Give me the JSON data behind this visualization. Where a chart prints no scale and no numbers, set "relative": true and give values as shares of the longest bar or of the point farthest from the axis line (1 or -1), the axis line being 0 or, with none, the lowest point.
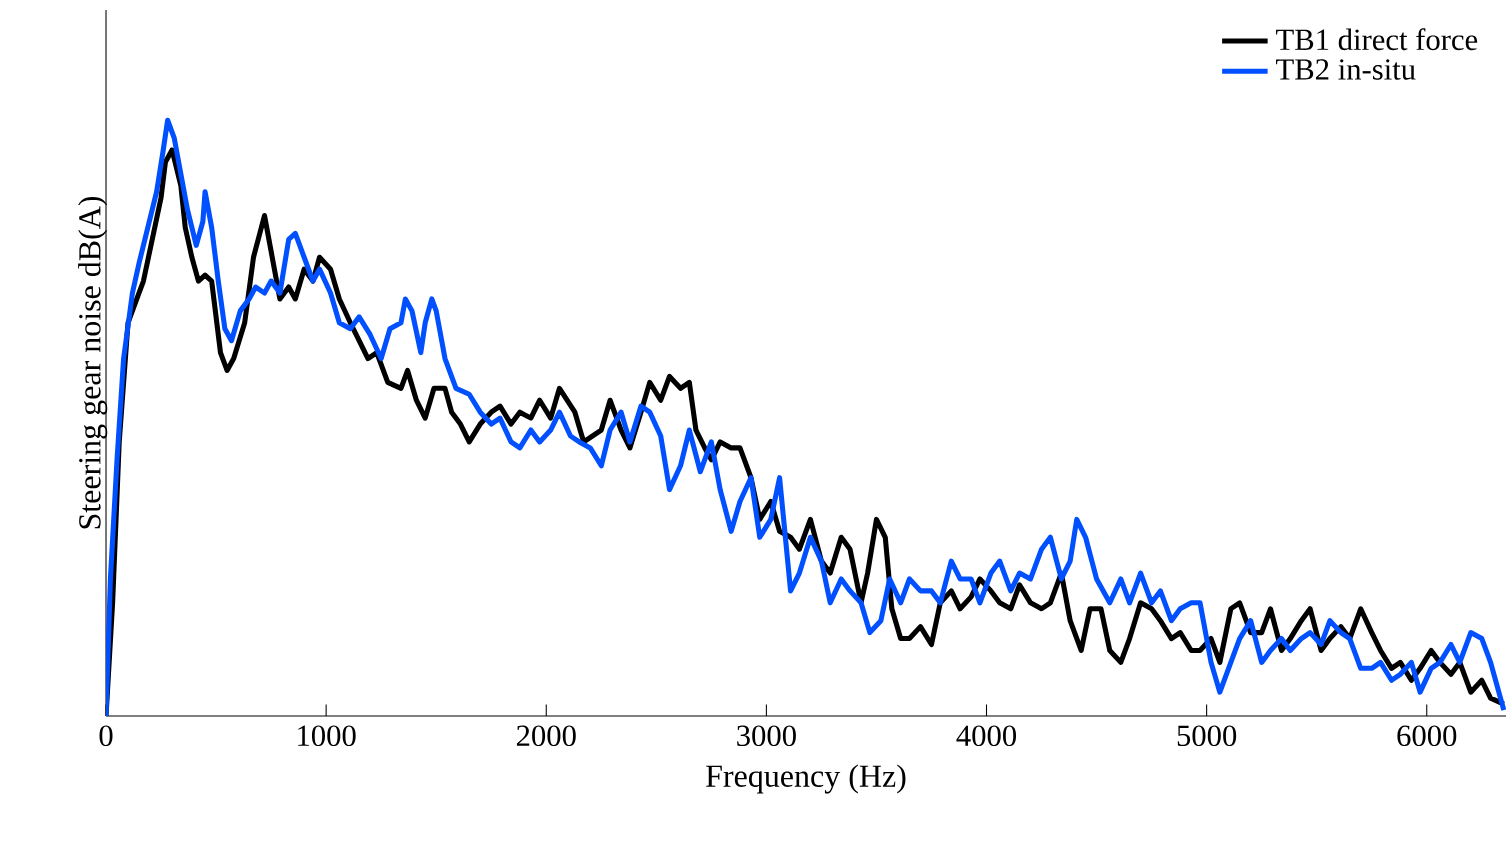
{
  "chart_data": {
    "type": "line",
    "relative": true,
    "xlabel": "Frequency (Hz)",
    "ylabel": "Steering gear noise dB(A)",
    "xlim": [
      0,
      6360
    ],
    "xticks": [
      0,
      1000,
      2000,
      3000,
      4000,
      5000,
      6000
    ],
    "legend": "top right",
    "grid": false,
    "marker": "none",
    "line_style": "solid",
    "series": [
      {
        "name": "TB1 direct force",
        "color": "#000000",
        "x": [
          0,
          30,
          60,
          100,
          140,
          170,
          210,
          250,
          270,
          300,
          340,
          360,
          390,
          420,
          450,
          480,
          520,
          550,
          580,
          630,
          670,
          720,
          750,
          790,
          830,
          860,
          900,
          940,
          970,
          1020,
          1060,
          1110,
          1150,
          1190,
          1230,
          1280,
          1340,
          1370,
          1410,
          1450,
          1490,
          1540,
          1570,
          1610,
          1650,
          1700,
          1750,
          1790,
          1840,
          1880,
          1930,
          1970,
          2020,
          2060,
          2130,
          2170,
          2210,
          2250,
          2290,
          2340,
          2380,
          2430,
          2470,
          2520,
          2560,
          2610,
          2650,
          2680,
          2720,
          2750,
          2790,
          2840,
          2880,
          2930,
          2970,
          3020,
          3060,
          3110,
          3150,
          3200,
          3250,
          3290,
          3340,
          3380,
          3430,
          3460,
          3500,
          3540,
          3570,
          3610,
          3650,
          3700,
          3750,
          3790,
          3840,
          3880,
          3930,
          3970,
          4020,
          4060,
          4110,
          4150,
          4200,
          4250,
          4290,
          4340,
          4380,
          4430,
          4470,
          4520,
          4560,
          4610,
          4650,
          4700,
          4750,
          4790,
          4840,
          4880,
          4930,
          4970,
          5020,
          5060,
          5110,
          5150,
          5200,
          5250,
          5290,
          5340,
          5380,
          5430,
          5470,
          5520,
          5560,
          5610,
          5650,
          5700,
          5750,
          5790,
          5840,
          5880,
          5930,
          5970,
          6020,
          6060,
          6110,
          6150,
          6200,
          6250,
          6290,
          6350
        ],
        "values": [
          0,
          0.19,
          0.46,
          0.66,
          0.7,
          0.73,
          0.8,
          0.87,
          0.93,
          0.95,
          0.89,
          0.82,
          0.77,
          0.73,
          0.74,
          0.73,
          0.61,
          0.58,
          0.6,
          0.66,
          0.77,
          0.84,
          0.78,
          0.7,
          0.72,
          0.7,
          0.75,
          0.73,
          0.77,
          0.75,
          0.7,
          0.66,
          0.63,
          0.6,
          0.61,
          0.56,
          0.55,
          0.58,
          0.53,
          0.5,
          0.55,
          0.55,
          0.51,
          0.49,
          0.46,
          0.49,
          0.51,
          0.52,
          0.49,
          0.51,
          0.5,
          0.53,
          0.5,
          0.55,
          0.51,
          0.46,
          0.47,
          0.48,
          0.53,
          0.48,
          0.45,
          0.51,
          0.56,
          0.53,
          0.57,
          0.55,
          0.56,
          0.48,
          0.45,
          0.43,
          0.46,
          0.45,
          0.45,
          0.4,
          0.33,
          0.36,
          0.31,
          0.3,
          0.28,
          0.33,
          0.26,
          0.24,
          0.3,
          0.28,
          0.19,
          0.24,
          0.33,
          0.3,
          0.18,
          0.13,
          0.13,
          0.15,
          0.12,
          0.19,
          0.21,
          0.18,
          0.2,
          0.23,
          0.21,
          0.19,
          0.18,
          0.22,
          0.19,
          0.18,
          0.19,
          0.24,
          0.16,
          0.11,
          0.18,
          0.18,
          0.11,
          0.09,
          0.13,
          0.19,
          0.18,
          0.16,
          0.13,
          0.14,
          0.11,
          0.11,
          0.13,
          0.09,
          0.18,
          0.19,
          0.14,
          0.14,
          0.18,
          0.11,
          0.13,
          0.16,
          0.18,
          0.11,
          0.13,
          0.15,
          0.13,
          0.18,
          0.14,
          0.11,
          0.08,
          0.09,
          0.06,
          0.08,
          0.11,
          0.09,
          0.07,
          0.09,
          0.04,
          0.06,
          0.03,
          0.02
        ]
      },
      {
        "name": "TB2 in-situ",
        "color": "#0050ff",
        "x": [
          0,
          20,
          50,
          80,
          120,
          150,
          190,
          230,
          260,
          280,
          310,
          340,
          370,
          410,
          440,
          450,
          480,
          510,
          540,
          570,
          610,
          650,
          680,
          720,
          750,
          790,
          830,
          860,
          900,
          940,
          970,
          1020,
          1060,
          1110,
          1150,
          1200,
          1250,
          1290,
          1340,
          1360,
          1390,
          1430,
          1450,
          1480,
          1500,
          1540,
          1590,
          1650,
          1700,
          1750,
          1790,
          1840,
          1880,
          1930,
          1970,
          2020,
          2060,
          2110,
          2150,
          2200,
          2250,
          2290,
          2340,
          2380,
          2430,
          2470,
          2520,
          2560,
          2610,
          2650,
          2700,
          2750,
          2790,
          2840,
          2880,
          2930,
          2970,
          3020,
          3060,
          3110,
          3150,
          3200,
          3250,
          3290,
          3340,
          3380,
          3430,
          3470,
          3520,
          3560,
          3610,
          3650,
          3700,
          3750,
          3790,
          3840,
          3880,
          3930,
          3970,
          4020,
          4060,
          4110,
          4150,
          4200,
          4250,
          4290,
          4340,
          4380,
          4410,
          4450,
          4500,
          4560,
          4610,
          4650,
          4700,
          4750,
          4790,
          4840,
          4880,
          4930,
          4970,
          5020,
          5060,
          5110,
          5150,
          5200,
          5250,
          5290,
          5340,
          5380,
          5430,
          5470,
          5520,
          5560,
          5610,
          5650,
          5700,
          5750,
          5790,
          5840,
          5880,
          5930,
          5970,
          6020,
          6060,
          6110,
          6150,
          6200,
          6250,
          6290,
          6350
        ],
        "values": [
          0,
          0.23,
          0.43,
          0.6,
          0.71,
          0.76,
          0.82,
          0.88,
          0.95,
          1.0,
          0.97,
          0.91,
          0.85,
          0.79,
          0.83,
          0.88,
          0.82,
          0.73,
          0.65,
          0.63,
          0.68,
          0.7,
          0.72,
          0.71,
          0.73,
          0.71,
          0.8,
          0.81,
          0.77,
          0.73,
          0.75,
          0.71,
          0.66,
          0.65,
          0.67,
          0.64,
          0.6,
          0.65,
          0.66,
          0.7,
          0.68,
          0.61,
          0.66,
          0.7,
          0.68,
          0.6,
          0.55,
          0.54,
          0.51,
          0.49,
          0.5,
          0.46,
          0.45,
          0.48,
          0.46,
          0.48,
          0.51,
          0.47,
          0.46,
          0.45,
          0.42,
          0.48,
          0.51,
          0.46,
          0.52,
          0.51,
          0.47,
          0.38,
          0.42,
          0.48,
          0.41,
          0.46,
          0.38,
          0.31,
          0.36,
          0.4,
          0.3,
          0.33,
          0.4,
          0.21,
          0.24,
          0.3,
          0.26,
          0.19,
          0.23,
          0.21,
          0.19,
          0.14,
          0.16,
          0.23,
          0.19,
          0.23,
          0.21,
          0.21,
          0.19,
          0.26,
          0.23,
          0.23,
          0.19,
          0.24,
          0.26,
          0.21,
          0.24,
          0.23,
          0.28,
          0.3,
          0.23,
          0.26,
          0.33,
          0.3,
          0.23,
          0.19,
          0.23,
          0.19,
          0.24,
          0.19,
          0.21,
          0.16,
          0.18,
          0.19,
          0.19,
          0.09,
          0.04,
          0.09,
          0.13,
          0.16,
          0.09,
          0.11,
          0.13,
          0.11,
          0.13,
          0.14,
          0.12,
          0.16,
          0.14,
          0.13,
          0.08,
          0.08,
          0.09,
          0.06,
          0.07,
          0.09,
          0.04,
          0.08,
          0.09,
          0.12,
          0.09,
          0.14,
          0.13,
          0.09,
          0.01
        ]
      }
    ]
  }
}
